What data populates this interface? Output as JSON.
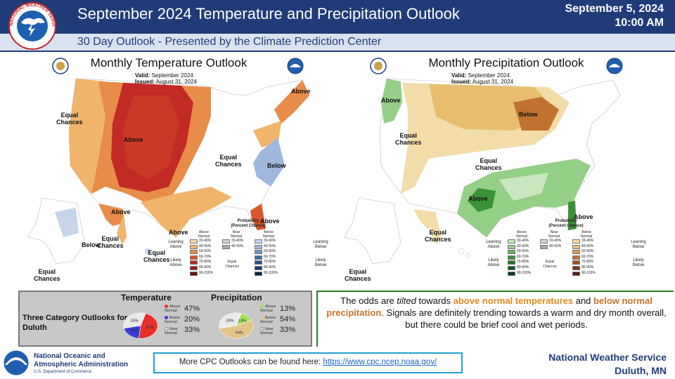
{
  "header": {
    "title": "September 2024 Temperature and Precipitation Outlook",
    "subtitle": "30 Day Outlook - Presented by the Climate Prediction Center",
    "date": "September 5, 2024",
    "time": "10:00 AM",
    "nws_logo_text": "NATIONAL WEATHER SERVICE"
  },
  "temperature_map": {
    "title": "Monthly Temperature Outlook",
    "valid_label": "Valid:",
    "valid_value": "September 2024",
    "issued_label": "Issued:",
    "issued_value": "August 31, 2024",
    "labels": {
      "equal_west": "Equal\nChances",
      "above_west": "Above",
      "above_ne": "Above",
      "equal_central": "Equal\nChances",
      "below_east": "Below",
      "above_alaska": "Above",
      "equal_alaska": "Equal\nChances",
      "below_alaska": "Below",
      "equal_ak_sw": "Equal\nChances",
      "equal_ak_far": "Equal\nChances",
      "above_texas": "Above",
      "above_florida": "Above"
    }
  },
  "precipitation_map": {
    "title": "Monthly Precipitation Outlook",
    "valid_label": "Valid:",
    "valid_value": "September 2024",
    "issued_label": "Issued:",
    "issued_value": "August 31, 2024",
    "labels": {
      "above_nw": "Above",
      "equal_west": "Equal\nChances",
      "below_north": "Below",
      "equal_central": "Equal\nChances",
      "above_texas": "Above",
      "above_florida": "Above",
      "equal_alaska": "Equal\nChances",
      "equal_ak_far": "Equal\nChances"
    }
  },
  "legend": {
    "title": "Probability\n(Percent Chance)",
    "above_head": "Above\nNormal",
    "near_head": "Near\nNormal",
    "below_head": "Below\nNormal",
    "leaning_above": "Leaning\nAbove",
    "likely_above": "Likely\nAbove",
    "leaning_below": "Leaning\nBelow",
    "likely_below": "Likely\nBelow",
    "equal_chances": "Equal\nChances",
    "ranges": [
      "33-40%",
      "40-50%",
      "50-60%",
      "60-70%",
      "70-80%",
      "80-90%",
      "90-100%"
    ],
    "near_ranges": [
      "33-40%",
      "40-50%"
    ],
    "temp_above_colors": [
      "#f5d9a8",
      "#f0b46b",
      "#e88c4a",
      "#d9562d",
      "#c22a26",
      "#9a1c1c",
      "#6b1010"
    ],
    "temp_below_colors": [
      "#c7d5ea",
      "#9fb7dc",
      "#6f95c9",
      "#3f6fb0",
      "#294f8f",
      "#1c3670",
      "#0f1f4a"
    ],
    "precip_above_colors": [
      "#c8e6c0",
      "#93cf86",
      "#5fb356",
      "#3a9136",
      "#237327",
      "#14531a",
      "#0b3a10"
    ],
    "precip_below_colors": [
      "#f2dca9",
      "#e6be6e",
      "#d99a45",
      "#c27230",
      "#a24e22",
      "#7a3318",
      "#521f0e"
    ],
    "near_colors": [
      "#d3d3d3",
      "#a8a8a8"
    ]
  },
  "duluth": {
    "label": "Three Category Outlooks for Duluth",
    "temperature": {
      "heading": "Temperature",
      "above_pct": "47%",
      "below_pct": "20%",
      "near_pct": "33%",
      "above_key": "Above\nNormal",
      "below_key": "Below\nNormal",
      "near_key": "Near\nNormal",
      "slice_labels": [
        "47%",
        "20%",
        "33%"
      ],
      "values": [
        47,
        20,
        33
      ],
      "colors": [
        "#e8302a",
        "#3b3bd6",
        "#eaeaea"
      ]
    },
    "precipitation": {
      "heading": "Precipitation",
      "above_pct": "13%",
      "below_pct": "54%",
      "near_pct": "33%",
      "above_key": "Above\nNormal",
      "below_key": "Below\nNormal",
      "near_key": "Near\nNormal",
      "slice_labels": [
        "13%",
        "54%",
        "33%"
      ],
      "values": [
        13,
        54,
        33
      ],
      "colors": [
        "#a6e05e",
        "#e5c38c",
        "#eaeaea"
      ]
    }
  },
  "summary": {
    "p1": "The odds are ",
    "p2": "tilted",
    "p3": " towards ",
    "p4": "above normal temperatures",
    "p5": " and ",
    "p6": "below normal precipitation",
    "p7": ". Signals are definitely trending towards a warm and dry month overall, but there could be brief cool and wet periods."
  },
  "footer": {
    "noaa_name_1": "National Oceanic and",
    "noaa_name_2": "Atmospheric Administration",
    "noaa_dept": "U.S. Department of Commerce",
    "cpc_text": "More CPC Outlooks can be found here: ",
    "cpc_link": "https://www.cpc.ncep.noaa.gov/",
    "nws_name": "National Weather Service",
    "nws_office": "Duluth, MN"
  }
}
